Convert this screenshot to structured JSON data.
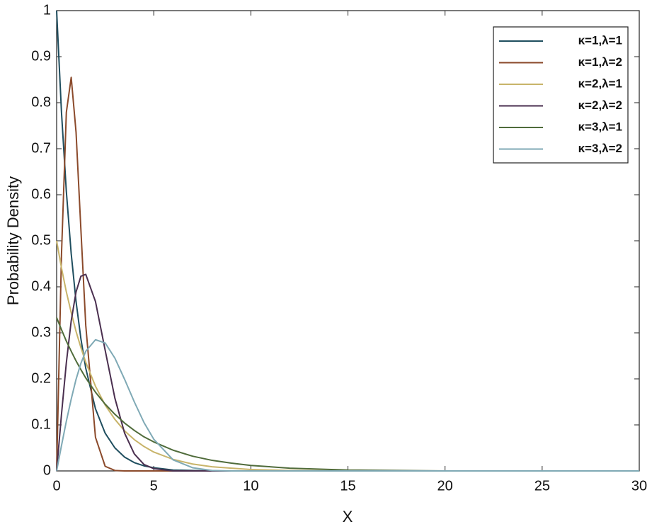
{
  "chart_data": {
    "type": "line",
    "x_label": "X",
    "y_label": "Probability Density",
    "x": [
      0,
      0.25,
      0.5,
      0.75,
      1,
      1.25,
      1.5,
      2,
      2.5,
      3,
      3.5,
      4,
      4.5,
      5,
      6,
      7,
      8,
      9,
      10,
      12,
      15,
      20,
      25,
      30
    ],
    "series": [
      {
        "name": "κ=1,λ=1",
        "color": "#1f4e5f",
        "values": [
          1,
          0.779,
          0.607,
          0.472,
          0.368,
          0.287,
          0.223,
          0.135,
          0.082,
          0.05,
          0.03,
          0.018,
          0.011,
          0.007,
          0.002,
          0.001,
          0,
          0,
          0,
          0,
          0,
          0,
          0,
          0
        ]
      },
      {
        "name": "κ=1,λ=2",
        "color": "#8b4a2b",
        "values": [
          0,
          0.47,
          0.779,
          0.855,
          0.736,
          0.524,
          0.316,
          0.073,
          0.01,
          0.001,
          0,
          0,
          0,
          0,
          0,
          0,
          0,
          0,
          0,
          0,
          0,
          0,
          0,
          0
        ]
      },
      {
        "name": "κ=2,λ=1",
        "color": "#c8b46a",
        "values": [
          0.5,
          0.441,
          0.389,
          0.344,
          0.303,
          0.268,
          0.236,
          0.184,
          0.143,
          0.112,
          0.087,
          0.068,
          0.053,
          0.041,
          0.025,
          0.015,
          0.009,
          0.006,
          0.003,
          0.001,
          0,
          0,
          0,
          0
        ]
      },
      {
        "name": "κ=2,λ=2",
        "color": "#4a2f4f",
        "values": [
          0,
          0.123,
          0.235,
          0.326,
          0.389,
          0.423,
          0.427,
          0.368,
          0.262,
          0.158,
          0.082,
          0.037,
          0.014,
          0.005,
          0,
          0,
          0,
          0,
          0,
          0,
          0,
          0,
          0,
          0
        ]
      },
      {
        "name": "κ=3,λ=1",
        "color": "#4f6b3a",
        "values": [
          0.333,
          0.307,
          0.282,
          0.26,
          0.239,
          0.22,
          0.202,
          0.171,
          0.145,
          0.123,
          0.104,
          0.088,
          0.074,
          0.063,
          0.045,
          0.032,
          0.023,
          0.017,
          0.012,
          0.006,
          0.002,
          0,
          0,
          0
        ]
      },
      {
        "name": "κ=3,λ=2",
        "color": "#7fa9b5",
        "values": [
          0,
          0.055,
          0.108,
          0.156,
          0.199,
          0.234,
          0.26,
          0.285,
          0.278,
          0.245,
          0.199,
          0.15,
          0.105,
          0.069,
          0.024,
          0.007,
          0.001,
          0,
          0,
          0,
          0,
          0,
          0,
          0
        ]
      }
    ],
    "xlim": [
      0,
      30
    ],
    "xticks": [
      0,
      5,
      10,
      15,
      20,
      25,
      30
    ],
    "ylim": [
      0,
      1
    ],
    "yticks": [
      0,
      0.1,
      0.2,
      0.3,
      0.4,
      0.5,
      0.6,
      0.7,
      0.8,
      0.9,
      1
    ],
    "legend": "top-right"
  }
}
